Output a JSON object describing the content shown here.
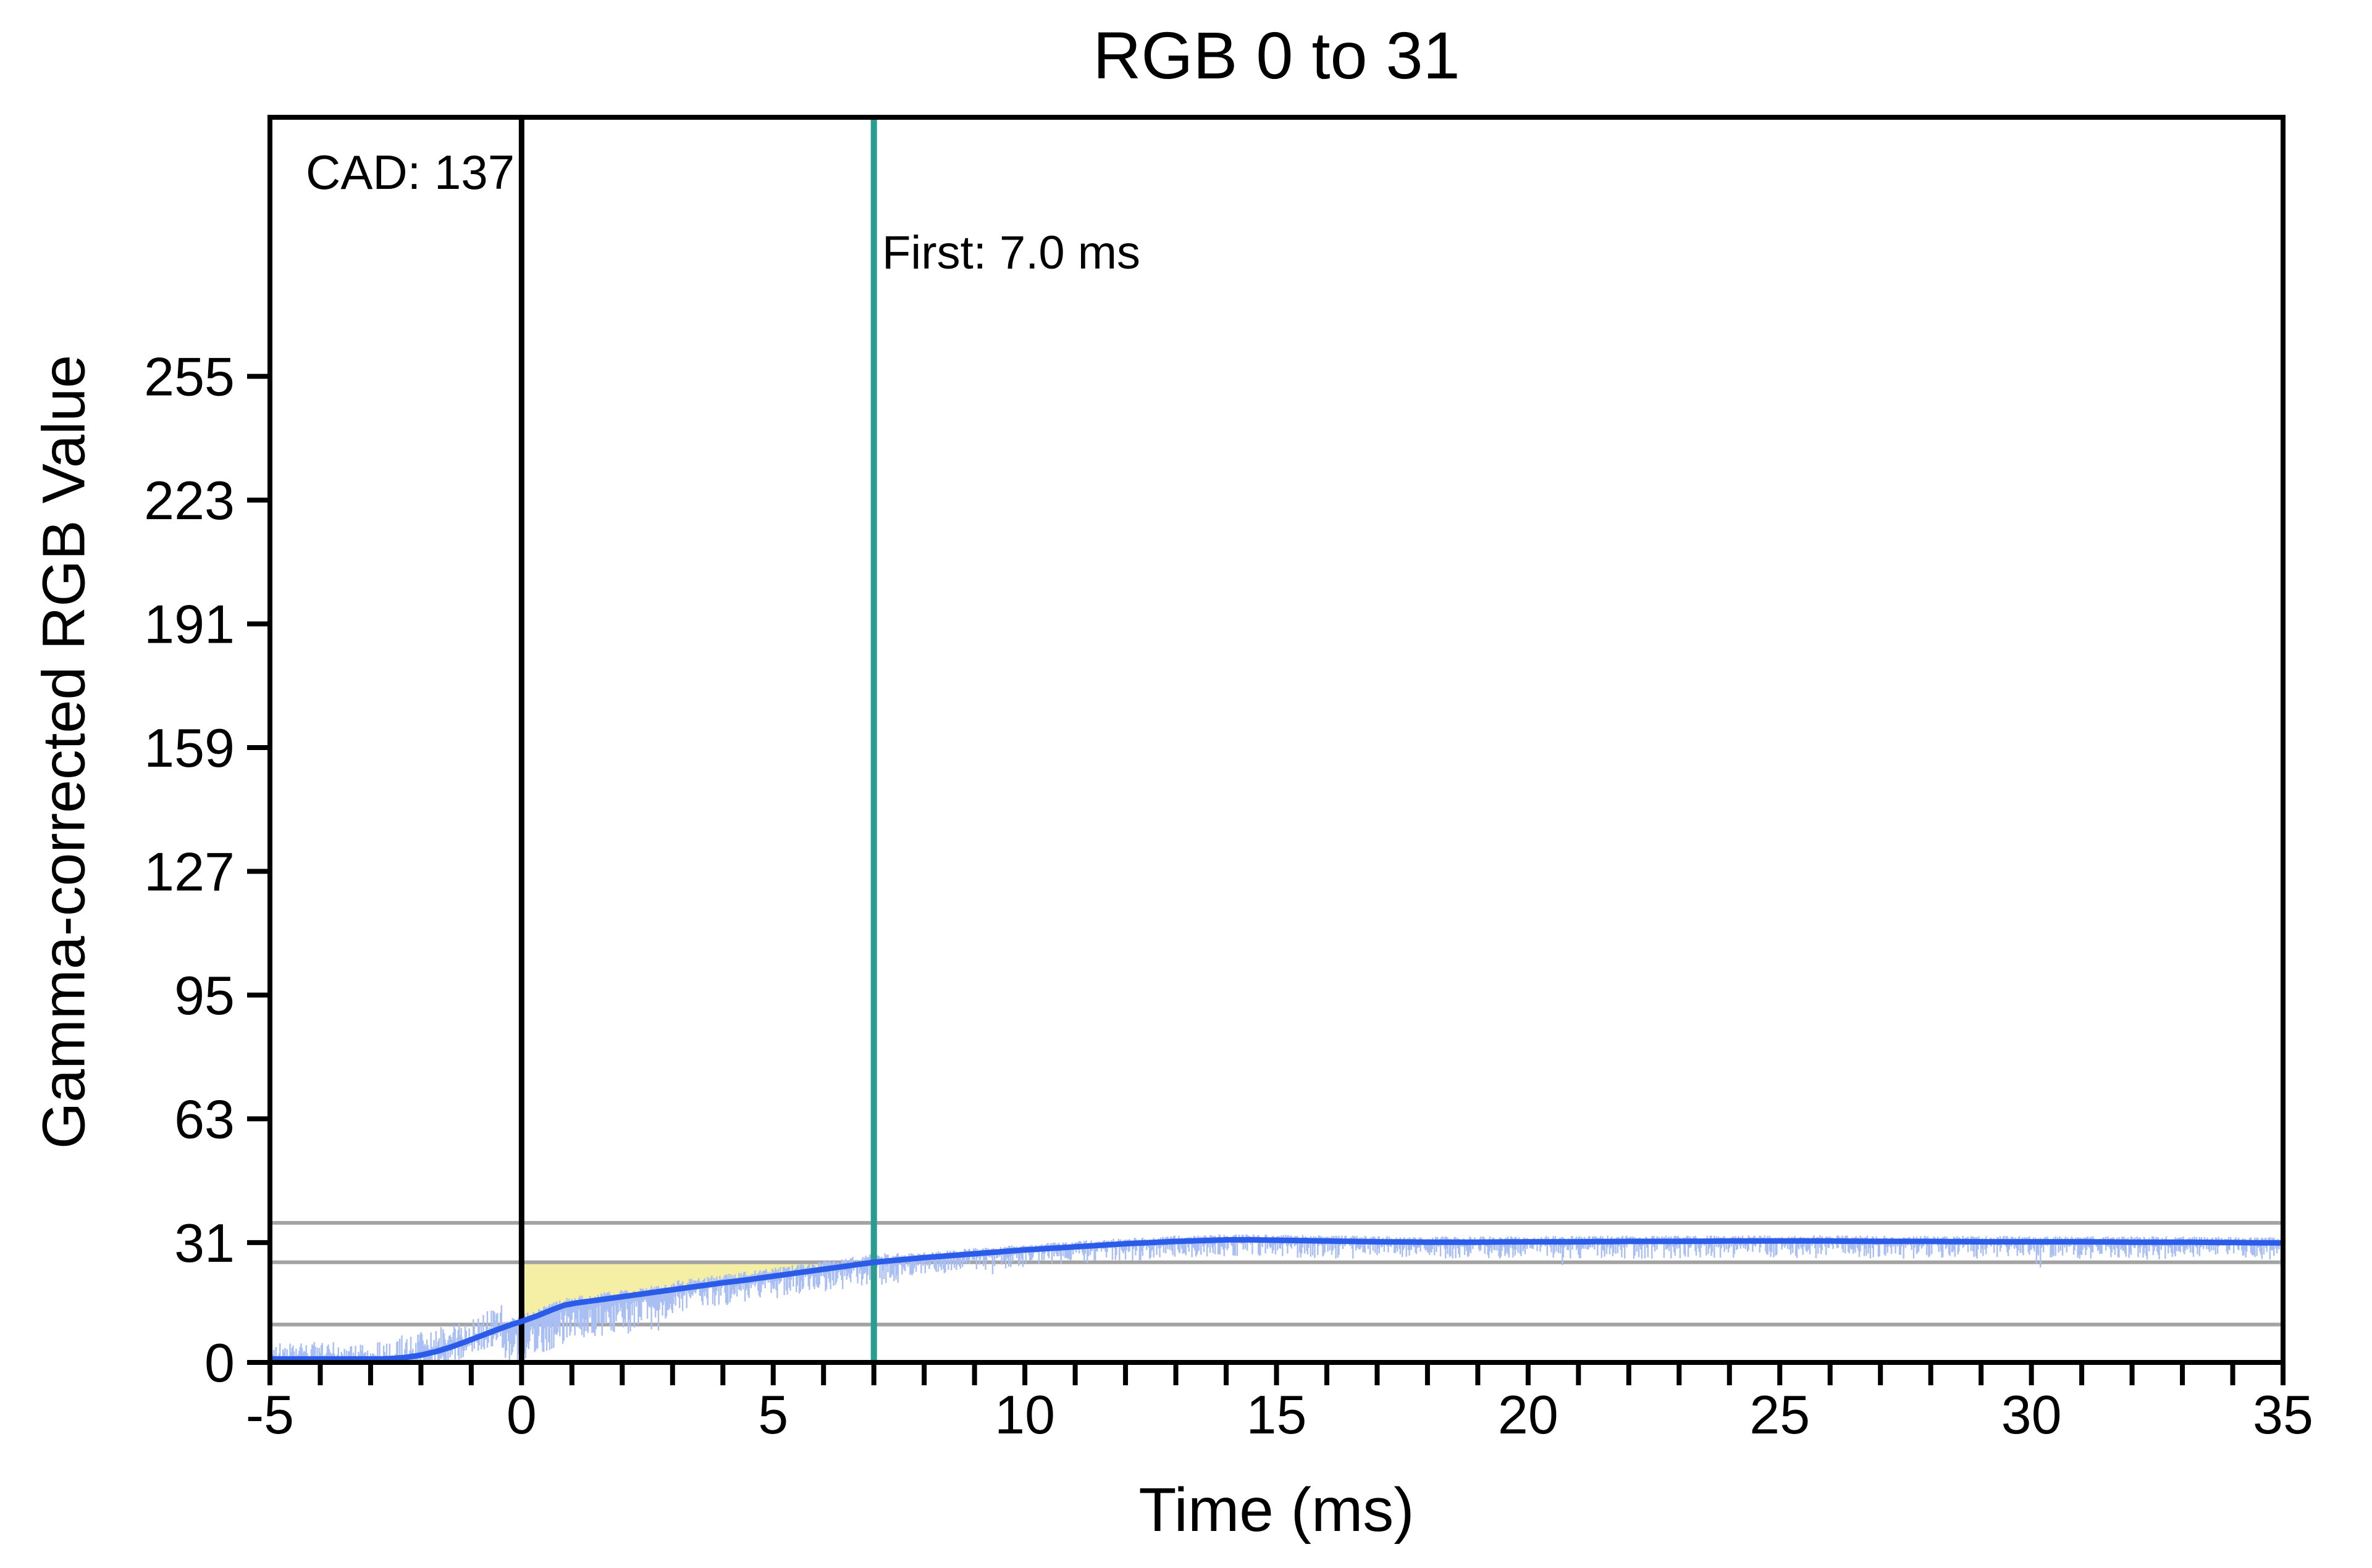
{
  "figure": {
    "background": "#ffffff"
  },
  "chart_data": {
    "type": "line",
    "title": "RGB 0 to 31",
    "xlabel": "Time (ms)",
    "ylabel": "Gamma-corrected RGB Value",
    "xlim": [
      -5,
      35
    ],
    "ylim": [
      0,
      322
    ],
    "grid": false,
    "legend": "none",
    "xticks": {
      "major": [
        -5,
        0,
        5,
        10,
        15,
        20,
        25,
        30,
        35
      ],
      "minor_step": 1
    },
    "yticks": [
      0,
      31,
      63,
      95,
      127,
      159,
      191,
      223,
      255
    ],
    "annotations": {
      "cad": "CAD: 137",
      "first": "First: 7.0 ms"
    },
    "markers": {
      "stimulus_onset_ms": 0,
      "first_response_ms": 7.0,
      "threshold_lines": [
        36.1,
        25.9,
        9.8
      ],
      "response_region": {
        "t_start": 0,
        "t_end": 7.0,
        "level": 25.9
      }
    },
    "series": [
      {
        "name": "smoothed-response",
        "color": "#2a5ce9",
        "width": 9,
        "points": [
          [
            -5,
            0.9
          ],
          [
            -4,
            0.9
          ],
          [
            -3.2,
            0.9
          ],
          [
            -2.8,
            0.9
          ],
          [
            -2.6,
            1.0
          ],
          [
            -2.3,
            1.3
          ],
          [
            -2.0,
            1.9
          ],
          [
            -1.7,
            2.8
          ],
          [
            -1.4,
            4.0
          ],
          [
            -1.1,
            5.4
          ],
          [
            -0.8,
            6.9
          ],
          [
            -0.5,
            8.4
          ],
          [
            -0.2,
            9.8
          ],
          [
            0,
            10.6
          ],
          [
            0.3,
            12.0
          ],
          [
            0.6,
            13.6
          ],
          [
            0.85,
            14.8
          ],
          [
            1.1,
            15.4
          ],
          [
            1.5,
            16.1
          ],
          [
            2,
            17.0
          ],
          [
            2.5,
            17.9
          ],
          [
            3,
            18.8
          ],
          [
            3.5,
            19.7
          ],
          [
            4,
            20.6
          ],
          [
            4.5,
            21.4
          ],
          [
            5,
            22.3
          ],
          [
            5.5,
            23.2
          ],
          [
            6,
            24.1
          ],
          [
            6.5,
            25.0
          ],
          [
            7,
            25.9
          ],
          [
            7.5,
            26.5
          ],
          [
            8,
            27.1
          ],
          [
            8.5,
            27.6
          ],
          [
            9,
            28.1
          ],
          [
            9.5,
            28.6
          ],
          [
            10,
            29.1
          ],
          [
            10.5,
            29.5
          ],
          [
            11,
            29.9
          ],
          [
            11.5,
            30.3
          ],
          [
            12,
            30.7
          ],
          [
            12.5,
            31.0
          ],
          [
            13,
            31.3
          ],
          [
            13.5,
            31.5
          ],
          [
            14,
            31.7
          ],
          [
            14.5,
            31.7
          ],
          [
            15,
            31.6
          ],
          [
            15.5,
            31.5
          ],
          [
            16,
            31.4
          ],
          [
            16.5,
            31.3
          ],
          [
            17,
            31.2
          ],
          [
            18,
            31.1
          ],
          [
            19,
            31.1
          ],
          [
            20,
            31.2
          ],
          [
            21,
            31.2
          ],
          [
            22,
            31.3
          ],
          [
            23,
            31.3
          ],
          [
            24,
            31.4
          ],
          [
            25,
            31.4
          ],
          [
            26,
            31.4
          ],
          [
            27,
            31.3
          ],
          [
            28,
            31.3
          ],
          [
            29,
            31.2
          ],
          [
            30,
            31.2
          ],
          [
            31,
            31.2
          ],
          [
            32,
            31.1
          ],
          [
            33,
            31.1
          ],
          [
            34,
            31.0
          ],
          [
            35,
            30.9
          ]
        ]
      },
      {
        "name": "raw-sensor-trace",
        "color": "#a9bef3",
        "width": 2.4,
        "render": "noise",
        "seed": 987654321,
        "step_ms": 0.02
      }
    ],
    "colors": {
      "response_fill": "#f5efa5",
      "threshold": "#a3a3a3",
      "onset_line": "#000000",
      "first_response_line": "#2b9c90",
      "axis": "#000000"
    }
  }
}
